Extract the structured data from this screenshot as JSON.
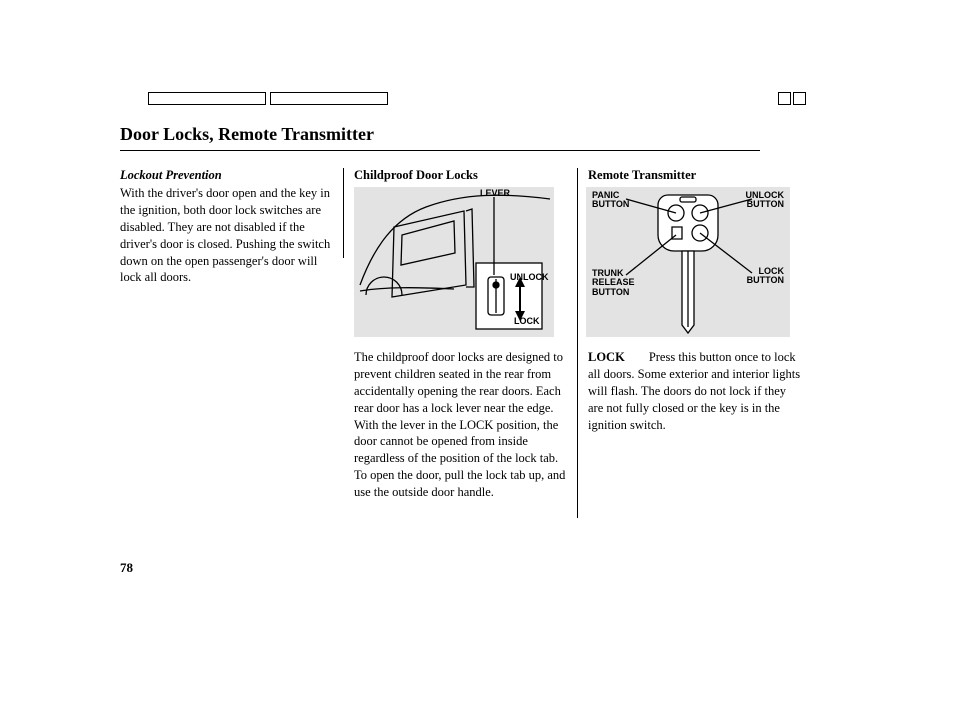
{
  "title": "Door Locks, Remote Transmitter",
  "page_number": "78",
  "col1": {
    "heading": "Lockout Prevention",
    "body": "With the driver's door open and the key in the ignition, both door lock switches are disabled. They are not disabled if the driver's door is closed. Pushing the switch down on the open passenger's door will lock all doors."
  },
  "col2": {
    "heading": "Childproof Door Locks",
    "body": "The childproof door locks are designed to prevent children seated in the rear from accidentally opening the rear doors. Each rear door has a lock lever near the edge. With the lever in the LOCK position, the door cannot be opened from inside regardless of the position of the lock tab. To open the door, pull the lock tab up, and use the outside door handle.",
    "fig": {
      "bg": "#e3e3e3",
      "stroke": "#000000",
      "labels": {
        "lever": "LEVER",
        "unlock": "UNLOCK",
        "lock": "LOCK"
      }
    }
  },
  "col3": {
    "heading": "Remote Transmitter",
    "runin": "LOCK",
    "body": "Press this button once to lock all doors. Some exterior and interior lights will flash. The doors do not lock if they are not fully closed or the key is in the ignition switch.",
    "fig": {
      "bg": "#e3e3e3",
      "stroke": "#000000",
      "labels": {
        "panic": "PANIC\nBUTTON",
        "trunk": "TRUNK\nRELEASE\nBUTTON",
        "unlock": "UNLOCK\nBUTTON",
        "lock": "LOCK\nBUTTON"
      }
    }
  }
}
